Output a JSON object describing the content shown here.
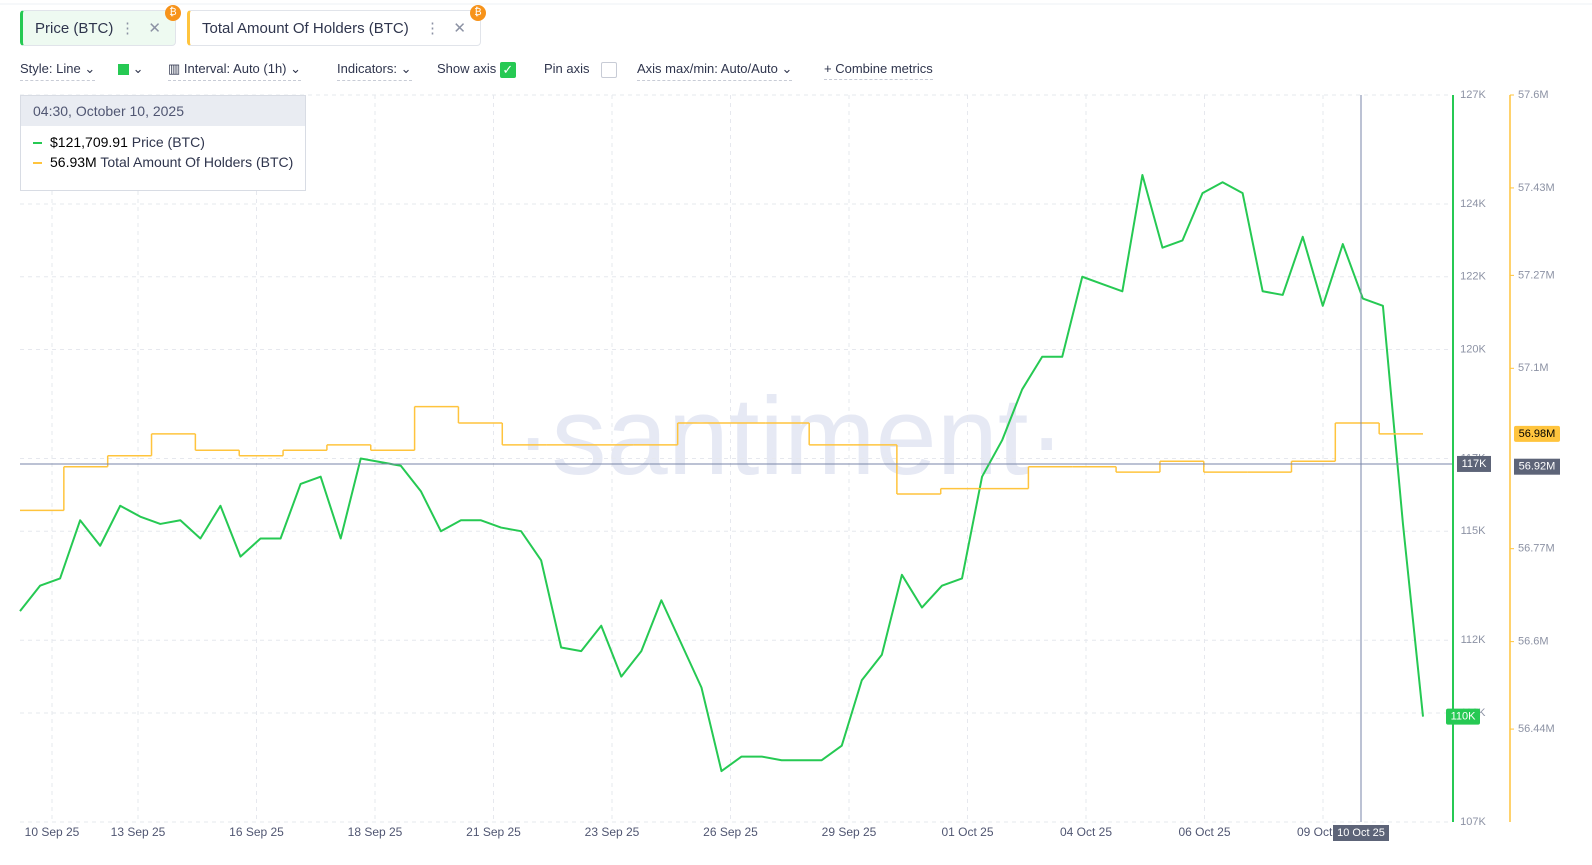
{
  "toolbar": [
    "Style: Line",
    "Interval: Auto (1h)",
    "Indicators:",
    "Show axis",
    "Pin axis",
    "Axis max/min: Auto/Auto",
    "Combine metrics"
  ],
  "tooltip": {
    "date": "04:30, October 10, 2025",
    "values": [
      "$121,709.91",
      "56.93M"
    ]
  },
  "watermark": "·santiment·",
  "chart_data": {
    "type": "line",
    "x_labels": [
      "10 Sep 25",
      "13 Sep 25",
      "16 Sep 25",
      "18 Sep 25",
      "21 Sep 25",
      "23 Sep 25",
      "26 Sep 25",
      "29 Sep 25",
      "01 Oct 25",
      "04 Oct 25",
      "06 Oct 25",
      "09 Oct 25"
    ],
    "series": [
      {
        "name": "Price (BTC)",
        "color": "#26c953",
        "axis": "y",
        "last_value_label": "110K",
        "values": [
          112800,
          113500,
          113700,
          115300,
          114600,
          115700,
          115400,
          115200,
          115300,
          114800,
          115700,
          114300,
          114800,
          114800,
          116300,
          116500,
          114800,
          117000,
          116900,
          116800,
          116100,
          115000,
          115300,
          115300,
          115100,
          115000,
          114200,
          111800,
          111700,
          112400,
          111000,
          111700,
          113100,
          111900,
          110700,
          108400,
          108800,
          108800,
          108700,
          108700,
          108700,
          109100,
          110900,
          111600,
          113800,
          112900,
          113500,
          113700,
          116500,
          117500,
          118900,
          119800,
          119800,
          122000,
          121800,
          121600,
          124800,
          122800,
          123000,
          124300,
          124600,
          124300,
          121600,
          121500,
          123100,
          121200,
          122900,
          121400,
          121200,
          115200,
          109900
        ]
      },
      {
        "name": "Total Amount Of Holders (BTC)",
        "color": "#ffc43d",
        "axis": "y2",
        "step": true,
        "last_value_label": "56.98M",
        "values": [
          56.84,
          56.92,
          56.94,
          56.98,
          56.95,
          56.94,
          56.95,
          56.96,
          56.95,
          57.03,
          57.0,
          56.96,
          56.96,
          56.96,
          56.96,
          57.0,
          57.0,
          57.0,
          56.96,
          56.96,
          56.87,
          56.88,
          56.88,
          56.92,
          56.92,
          56.91,
          56.93,
          56.91,
          56.91,
          56.93,
          57.0,
          56.98
        ]
      }
    ],
    "ylim": [
      107000,
      127000
    ],
    "yticks": [
      {
        "value": 107000,
        "label": "107K"
      },
      {
        "value": 110000,
        "label": "110K"
      },
      {
        "value": 112000,
        "label": "112K"
      },
      {
        "value": 115000,
        "label": "115K"
      },
      {
        "value": 117000,
        "label": "117K"
      },
      {
        "value": 120000,
        "label": "120K"
      },
      {
        "value": 122000,
        "label": "122K"
      },
      {
        "value": 124000,
        "label": "124K"
      },
      {
        "value": 127000,
        "label": "127K"
      }
    ],
    "y2lim": [
      56.27,
      57.6
    ],
    "y2ticks": [
      {
        "value": 56.44,
        "label": "56.44M"
      },
      {
        "value": 56.6,
        "label": "56.6M"
      },
      {
        "value": 56.77,
        "label": "56.77M"
      },
      {
        "value": 57.1,
        "label": "57.1M"
      },
      {
        "value": 57.27,
        "label": "57.27M"
      },
      {
        "value": 57.43,
        "label": "57.43M"
      },
      {
        "value": 57.6,
        "label": "57.6M"
      }
    ],
    "grid": true,
    "crosshair": {
      "x_label": "10 Oct 25",
      "y": {
        "value": 116850,
        "label": "117K"
      },
      "y2": {
        "value": 56.92,
        "label": "56.92M"
      }
    }
  }
}
